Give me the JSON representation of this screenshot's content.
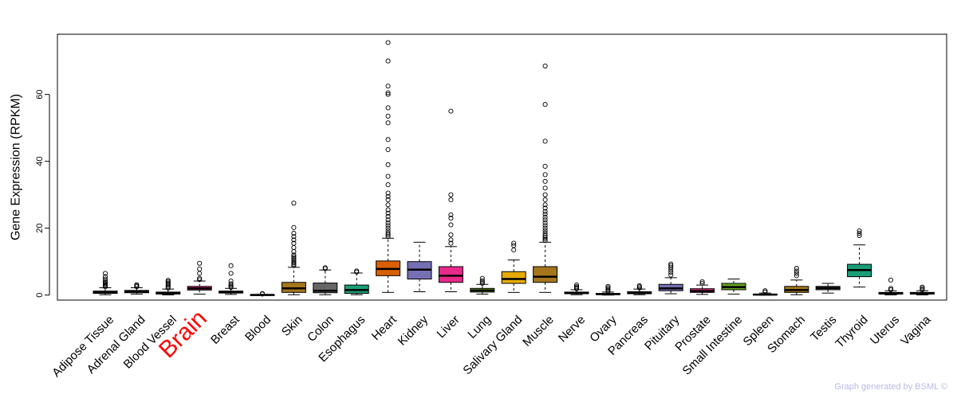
{
  "chart_data": {
    "type": "box",
    "title": "",
    "xlabel": "",
    "ylabel": "Gene Expression (RPKM)",
    "ylim": [
      -1.5,
      78
    ],
    "yticks": [
      0,
      20,
      40,
      60
    ],
    "highlight_category": "Brain",
    "highlight_color": "#ff0000",
    "categories": [
      "Adipose Tissue",
      "Adrenal Gland",
      "Blood Vessel",
      "Brain",
      "Breast",
      "Blood",
      "Skin",
      "Colon",
      "Esophagus",
      "Heart",
      "Kidney",
      "Liver",
      "Lung",
      "Salivary Gland",
      "Muscle",
      "Nerve",
      "Ovary",
      "Pancreas",
      "Pituitary",
      "Prostate",
      "Small Intestine",
      "Spleen",
      "Stomach",
      "Testis",
      "Thyroid",
      "Uterus",
      "Vagina"
    ],
    "boxes": [
      {
        "name": "Adipose Tissue",
        "color": "#1b9e77",
        "q1": 0.5,
        "median": 0.8,
        "q3": 1.2,
        "whisker_low": 0.1,
        "whisker_high": 2.2,
        "outliers": [
          2.5,
          2.8,
          3.1,
          3.4,
          3.8,
          4.2,
          4.8,
          5.5,
          6.5
        ]
      },
      {
        "name": "Adrenal Gland",
        "color": "#d95f02",
        "q1": 0.7,
        "median": 1.0,
        "q3": 1.4,
        "whisker_low": 0.3,
        "whisker_high": 2.2,
        "outliers": [
          2.5,
          2.8,
          3.1
        ]
      },
      {
        "name": "Blood Vessel",
        "color": "#7570b3",
        "q1": 0.3,
        "median": 0.6,
        "q3": 0.9,
        "whisker_low": 0.05,
        "whisker_high": 1.8,
        "outliers": [
          2.1,
          2.5,
          2.9,
          3.3,
          3.6,
          4.0,
          4.4
        ]
      },
      {
        "name": "Brain",
        "color": "#e7298a",
        "q1": 1.5,
        "median": 2.0,
        "q3": 2.6,
        "whisker_low": 0.3,
        "whisker_high": 4.2,
        "outliers": [
          4.6,
          5.0,
          6.5,
          7.8,
          9.5
        ]
      },
      {
        "name": "Breast",
        "color": "#66a61e",
        "q1": 0.6,
        "median": 0.9,
        "q3": 1.2,
        "whisker_low": 0.2,
        "whisker_high": 2.0,
        "outliers": [
          2.3,
          2.6,
          3.0,
          3.4,
          4.2,
          6.5,
          8.8
        ]
      },
      {
        "name": "Blood",
        "color": "#e6ab02",
        "q1": 0.02,
        "median": 0.05,
        "q3": 0.1,
        "whisker_low": 0.0,
        "whisker_high": 0.2,
        "outliers": [
          0.3,
          0.45
        ]
      },
      {
        "name": "Skin",
        "color": "#a6761d",
        "q1": 0.8,
        "median": 2.0,
        "q3": 3.8,
        "whisker_low": 0.1,
        "whisker_high": 8.3,
        "outliers": [
          8.8,
          9.2,
          9.6,
          10.0,
          10.5,
          11.0,
          11.5,
          12.0,
          13.0,
          14.2,
          15.5,
          16.5,
          17.5,
          18.5,
          20.2,
          27.5
        ]
      },
      {
        "name": "Colon",
        "color": "#666666",
        "q1": 0.7,
        "median": 1.3,
        "q3": 3.6,
        "whisker_low": 0.1,
        "whisker_high": 7.5,
        "outliers": [
          7.9,
          8.2
        ]
      },
      {
        "name": "Esophagus",
        "color": "#1b9e77",
        "q1": 0.5,
        "median": 1.5,
        "q3": 3.0,
        "whisker_low": 0.1,
        "whisker_high": 6.6,
        "outliers": [
          6.9,
          7.2
        ]
      },
      {
        "name": "Heart",
        "color": "#d95f02",
        "q1": 5.8,
        "median": 7.8,
        "q3": 10.2,
        "whisker_low": 0.8,
        "whisker_high": 17.0,
        "outliers": [
          17.5,
          18.0,
          18.5,
          19.2,
          20.0,
          20.8,
          21.6,
          22.5,
          23.5,
          24.5,
          25.5,
          27.0,
          28.5,
          29.5,
          30.5,
          33.0,
          35.5,
          39.0,
          43.5,
          46.5,
          51.5,
          53.5,
          56.0,
          60.0,
          60.5,
          62.5,
          70.0,
          75.5
        ]
      },
      {
        "name": "Kidney",
        "color": "#7570b3",
        "q1": 4.8,
        "median": 7.6,
        "q3": 10.0,
        "whisker_low": 1.0,
        "whisker_high": 15.8,
        "outliers": []
      },
      {
        "name": "Liver",
        "color": "#e7298a",
        "q1": 3.8,
        "median": 5.8,
        "q3": 8.5,
        "whisker_low": 1.0,
        "whisker_high": 14.5,
        "outliers": [
          15.5,
          16.5,
          18.0,
          21.0,
          23.0,
          24.0,
          28.5,
          30.0,
          55.0
        ]
      },
      {
        "name": "Lung",
        "color": "#66a61e",
        "q1": 0.9,
        "median": 1.4,
        "q3": 2.0,
        "whisker_low": 0.3,
        "whisker_high": 3.2,
        "outliers": [
          3.5,
          3.9,
          4.3,
          5.0
        ]
      },
      {
        "name": "Salivary Gland",
        "color": "#e6ab02",
        "q1": 3.5,
        "median": 4.8,
        "q3": 7.0,
        "whisker_low": 0.8,
        "whisker_high": 10.5,
        "outliers": [
          13.5,
          14.8,
          15.5
        ]
      },
      {
        "name": "Muscle",
        "color": "#a6761d",
        "q1": 3.8,
        "median": 5.5,
        "q3": 8.5,
        "whisker_low": 0.8,
        "whisker_high": 15.8,
        "outliers": [
          16.3,
          16.8,
          17.3,
          17.8,
          18.5,
          19.2,
          20.0,
          20.8,
          21.6,
          22.5,
          23.3,
          24.2,
          25.0,
          26.0,
          27.0,
          28.5,
          30.0,
          32.0,
          34.0,
          36.0,
          38.5,
          46.0,
          57.0,
          68.5
        ]
      },
      {
        "name": "Nerve",
        "color": "#666666",
        "q1": 0.4,
        "median": 0.6,
        "q3": 0.9,
        "whisker_low": 0.1,
        "whisker_high": 1.6,
        "outliers": [
          1.9,
          2.2,
          2.5,
          3.0
        ]
      },
      {
        "name": "Ovary",
        "color": "#1b9e77",
        "q1": 0.15,
        "median": 0.3,
        "q3": 0.5,
        "whisker_low": 0.0,
        "whisker_high": 0.9,
        "outliers": [
          1.1,
          1.4,
          1.8,
          2.2,
          2.6
        ]
      },
      {
        "name": "Pancreas",
        "color": "#d95f02",
        "q1": 0.4,
        "median": 0.7,
        "q3": 1.0,
        "whisker_low": 0.1,
        "whisker_high": 1.8,
        "outliers": [
          2.1,
          2.5,
          2.8
        ]
      },
      {
        "name": "Pituitary",
        "color": "#7570b3",
        "q1": 1.3,
        "median": 2.0,
        "q3": 3.2,
        "whisker_low": 0.4,
        "whisker_high": 5.2,
        "outliers": [
          6.0,
          6.8,
          7.5,
          8.2,
          8.8,
          9.3
        ]
      },
      {
        "name": "Prostate",
        "color": "#e7298a",
        "q1": 0.8,
        "median": 1.2,
        "q3": 1.9,
        "whisker_low": 0.2,
        "whisker_high": 3.0,
        "outliers": [
          3.5,
          4.0
        ]
      },
      {
        "name": "Small Intestine",
        "color": "#66a61e",
        "q1": 1.6,
        "median": 2.4,
        "q3": 3.5,
        "whisker_low": 0.3,
        "whisker_high": 4.8,
        "outliers": []
      },
      {
        "name": "Spleen",
        "color": "#e6ab02",
        "q1": 0.05,
        "median": 0.15,
        "q3": 0.3,
        "whisker_low": 0.0,
        "whisker_high": 0.6,
        "outliers": [
          0.9,
          1.3
        ]
      },
      {
        "name": "Stomach",
        "color": "#a6761d",
        "q1": 0.8,
        "median": 1.5,
        "q3": 2.6,
        "whisker_low": 0.1,
        "whisker_high": 4.5,
        "outliers": [
          5.8,
          6.5,
          7.2,
          8.0
        ]
      },
      {
        "name": "Testis",
        "color": "#666666",
        "q1": 1.6,
        "median": 2.1,
        "q3": 2.6,
        "whisker_low": 0.6,
        "whisker_high": 3.5,
        "outliers": []
      },
      {
        "name": "Thyroid",
        "color": "#1b9e77",
        "q1": 5.5,
        "median": 7.5,
        "q3": 9.2,
        "whisker_low": 2.4,
        "whisker_high": 15.0,
        "outliers": [
          17.8,
          18.5,
          19.2
        ]
      },
      {
        "name": "Uterus",
        "color": "#d95f02",
        "q1": 0.3,
        "median": 0.5,
        "q3": 0.8,
        "whisker_low": 0.05,
        "whisker_high": 1.3,
        "outliers": [
          1.6,
          2.0,
          4.5
        ]
      },
      {
        "name": "Vagina",
        "color": "#7570b3",
        "q1": 0.3,
        "median": 0.5,
        "q3": 0.8,
        "whisker_low": 0.05,
        "whisker_high": 1.3,
        "outliers": [
          1.6,
          2.0,
          2.4
        ]
      }
    ]
  },
  "credit": "Graph generated by BSML ©"
}
